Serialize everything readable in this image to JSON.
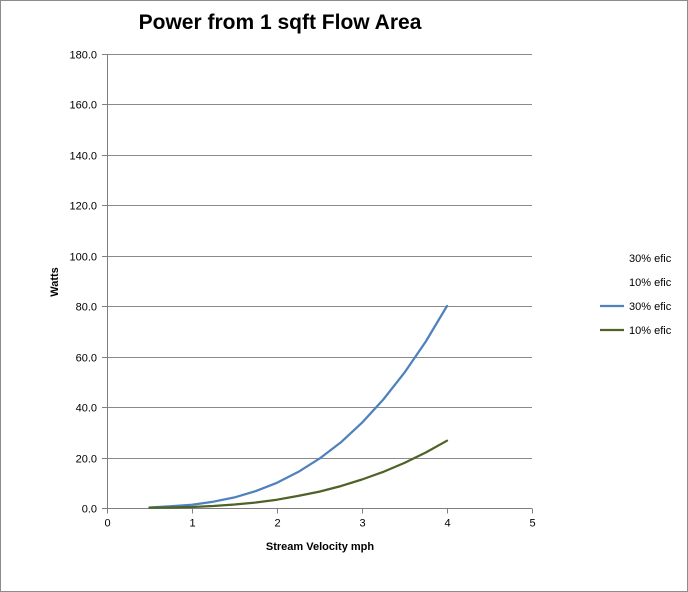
{
  "chart_data": {
    "type": "scatter",
    "title": "Power from 1 sqft Flow Area",
    "xlabel": "Stream Velocity mph",
    "ylabel": "Watts",
    "xlim": [
      0,
      5
    ],
    "ylim": [
      0,
      180
    ],
    "x_ticks": [
      0,
      1,
      2,
      3,
      4,
      5
    ],
    "y_ticks": [
      0,
      20,
      40,
      60,
      80,
      100,
      120,
      140,
      160,
      180
    ],
    "y_tick_labels": [
      "0.0",
      "20.0",
      "40.0",
      "60.0",
      "80.0",
      "100.0",
      "120.0",
      "140.0",
      "160.0",
      "180.0"
    ],
    "grid": "horizontal",
    "legend_position": "right",
    "legend": [
      {
        "label": "30% efic",
        "marker": "none",
        "color": ""
      },
      {
        "label": "10% efic",
        "marker": "none",
        "color": ""
      },
      {
        "label": "30% efic",
        "marker": "line",
        "color": "#4f81bd"
      },
      {
        "label": "10% efic",
        "marker": "line",
        "color": "#4f6228"
      }
    ],
    "series": [
      {
        "name": "30% efic",
        "color": "#4f81bd",
        "x": [
          0.5,
          0.75,
          1.0,
          1.25,
          1.5,
          1.75,
          2.0,
          2.25,
          2.5,
          2.75,
          3.0,
          3.25,
          3.5,
          3.75,
          4.0
        ],
        "y": [
          0.2,
          0.7,
          1.3,
          2.5,
          4.2,
          6.7,
          10.0,
          14.3,
          19.6,
          26.0,
          33.8,
          43.0,
          53.7,
          66.0,
          80.1
        ]
      },
      {
        "name": "10% efic",
        "color": "#4f6228",
        "x": [
          0.5,
          0.75,
          1.0,
          1.25,
          1.5,
          1.75,
          2.0,
          2.25,
          2.5,
          2.75,
          3.0,
          3.25,
          3.5,
          3.75,
          4.0
        ],
        "y": [
          0.1,
          0.2,
          0.4,
          0.8,
          1.4,
          2.2,
          3.3,
          4.8,
          6.5,
          8.7,
          11.3,
          14.3,
          17.9,
          22.0,
          26.7
        ]
      }
    ]
  }
}
